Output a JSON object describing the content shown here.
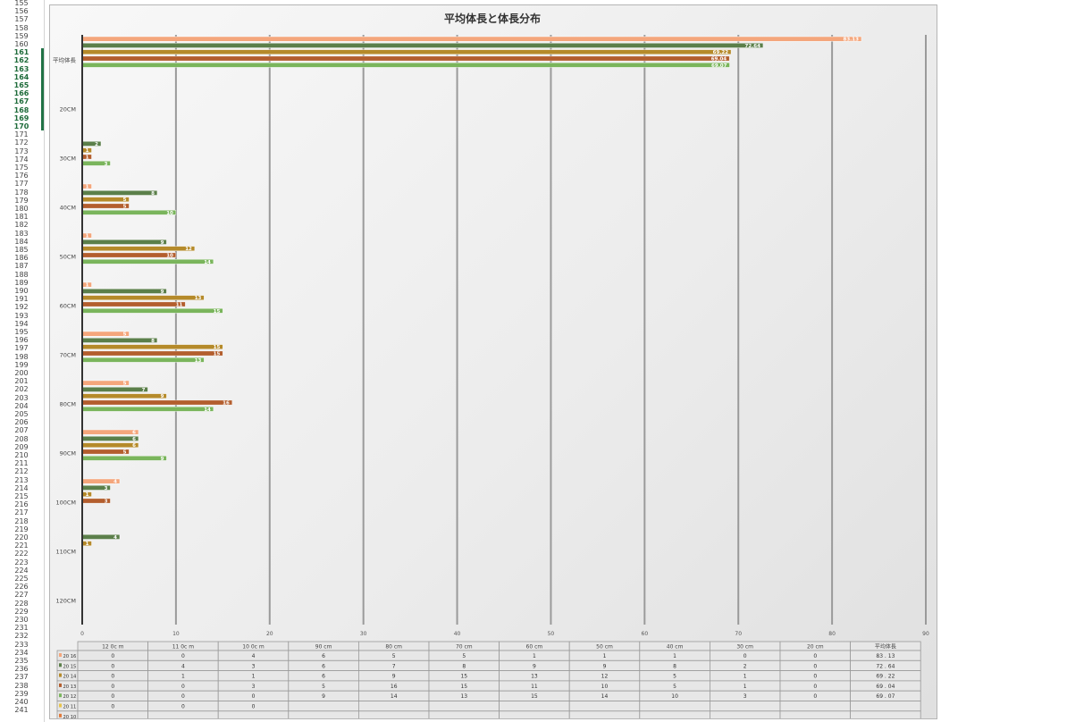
{
  "spreadsheet": {
    "row_numbers": [
      "155",
      "156",
      "157",
      "158",
      "159",
      "160",
      "161",
      "162",
      "163",
      "164",
      "165",
      "166",
      "167",
      "168",
      "169",
      "170",
      "171",
      "172",
      "173",
      "174",
      "175",
      "176",
      "177",
      "178",
      "179",
      "180",
      "181",
      "182",
      "183",
      "184",
      "185",
      "186",
      "187",
      "188",
      "189",
      "190",
      "191",
      "192",
      "193",
      "194",
      "195",
      "196",
      "197",
      "198",
      "199",
      "200",
      "201",
      "202",
      "203",
      "204",
      "205",
      "206",
      "207",
      "208",
      "209",
      "210",
      "211",
      "212",
      "213",
      "214",
      "215",
      "216",
      "217",
      "218",
      "219",
      "220",
      "221",
      "222",
      "223",
      "224",
      "225",
      "226",
      "227",
      "228",
      "229",
      "230",
      "231",
      "232",
      "233",
      "234",
      "235",
      "236",
      "237",
      "238",
      "239",
      "240",
      "241"
    ],
    "selected_rows": [
      "161",
      "162",
      "163",
      "164",
      "165",
      "166",
      "167",
      "168",
      "169",
      "170"
    ]
  },
  "chart_data": {
    "type": "bar",
    "orientation": "horizontal",
    "title": "平均体長と体長分布",
    "categories": [
      "平均体長",
      "20CM",
      "30CM",
      "40CM",
      "50CM",
      "60CM",
      "70CM",
      "80CM",
      "90CM",
      "100CM",
      "110CM",
      "120CM"
    ],
    "series": [
      {
        "name": "2016",
        "color": "#f4a67c",
        "values": [
          83.13,
          0,
          0,
          1,
          1,
          1,
          5,
          5,
          6,
          4,
          0,
          0
        ]
      },
      {
        "name": "2015",
        "color": "#5b7f4a",
        "values": [
          72.64,
          0,
          2,
          8,
          9,
          9,
          8,
          7,
          6,
          3,
          4,
          0
        ]
      },
      {
        "name": "2014",
        "color": "#b58a2a",
        "values": [
          69.22,
          0,
          1,
          5,
          12,
          13,
          15,
          9,
          6,
          1,
          1,
          0
        ]
      },
      {
        "name": "2013",
        "color": "#b35e2e",
        "values": [
          69.04,
          0,
          1,
          5,
          10,
          11,
          15,
          16,
          5,
          3,
          0,
          0
        ]
      },
      {
        "name": "2012",
        "color": "#7ab55c",
        "values": [
          69.07,
          0,
          3,
          10,
          14,
          15,
          13,
          14,
          9,
          0,
          0,
          0
        ]
      }
    ],
    "data_labels": [
      [
        "83.13",
        "",
        "",
        "1",
        "1",
        "1",
        "5",
        "5",
        "6",
        "4",
        "",
        ""
      ],
      [
        "72.64",
        "",
        "2",
        "8",
        "9",
        "9",
        "8",
        "7",
        "6",
        "3",
        "4",
        ""
      ],
      [
        "69.22",
        "",
        "1",
        "5",
        "12",
        "13",
        "15",
        "9",
        "6",
        "1",
        "1",
        ""
      ],
      [
        "69.04",
        "",
        "1",
        "5",
        "10",
        "11",
        "15",
        "16",
        "5",
        "3",
        "",
        ""
      ],
      [
        "69.07",
        "",
        "3",
        "10",
        "14",
        "15",
        "13",
        "14",
        "9",
        "",
        "",
        ""
      ]
    ],
    "xlim": [
      0,
      90
    ],
    "xticks": [
      "0",
      "10",
      "20",
      "30",
      "40",
      "50",
      "60",
      "70",
      "80",
      "90"
    ],
    "grid": true,
    "table": {
      "columns": [
        "12 0c m",
        "11 0c m",
        "10 0c m",
        "90 cm",
        "80 cm",
        "70 cm",
        "60 cm",
        "50 cm",
        "40 cm",
        "30 cm",
        "20 cm",
        "平均体長"
      ],
      "rows": [
        {
          "label": "20 16",
          "color": "#f4a67c",
          "values": [
            "0",
            "0",
            "4",
            "6",
            "5",
            "5",
            "1",
            "1",
            "1",
            "0",
            "0",
            "83 . 13"
          ]
        },
        {
          "label": "20 15",
          "color": "#5b7f4a",
          "values": [
            "0",
            "4",
            "3",
            "6",
            "7",
            "8",
            "9",
            "9",
            "8",
            "2",
            "0",
            "72 . 64"
          ]
        },
        {
          "label": "20 14",
          "color": "#b58a2a",
          "values": [
            "0",
            "1",
            "1",
            "6",
            "9",
            "15",
            "13",
            "12",
            "5",
            "1",
            "0",
            "69 . 22"
          ]
        },
        {
          "label": "20 13",
          "color": "#b35e2e",
          "values": [
            "0",
            "0",
            "3",
            "5",
            "16",
            "15",
            "11",
            "10",
            "5",
            "1",
            "0",
            "69 . 04"
          ]
        },
        {
          "label": "20 12",
          "color": "#7ab55c",
          "values": [
            "0",
            "0",
            "0",
            "9",
            "14",
            "13",
            "15",
            "14",
            "10",
            "3",
            "0",
            "69 . 07"
          ]
        },
        {
          "label": "20 11",
          "color": "#e8c44a",
          "values": [
            "0",
            "0",
            "0",
            "",
            "",
            "",
            "",
            "",
            "",
            "",
            "",
            ""
          ]
        },
        {
          "label": "20 10",
          "color": "#e07a3a",
          "values": [
            "",
            "",
            "",
            "",
            "",
            "",
            "",
            "",
            "",
            "",
            "",
            ""
          ]
        }
      ]
    }
  }
}
